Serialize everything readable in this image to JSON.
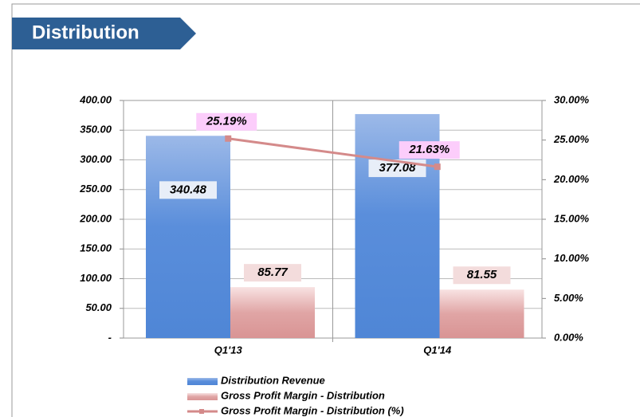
{
  "chart_data": {
    "type": "bar",
    "title": "Distribution",
    "categories": [
      "Q1'13",
      "Q1'14"
    ],
    "series": [
      {
        "name": "Distribution Revenue",
        "color": "#4f86d6",
        "values": [
          340.48,
          377.08
        ]
      },
      {
        "name": "Gross Profit Margin - Distribution",
        "color": "#d99494",
        "values": [
          85.77,
          81.55
        ]
      },
      {
        "name": "Gross Profit Margin - Distribution (%)",
        "color": "#d48a8a",
        "type": "line",
        "axis": "y2",
        "values": [
          25.19,
          21.63
        ],
        "value_labels": [
          "25.19%",
          "21.63%"
        ]
      }
    ],
    "ylim": [
      0,
      400
    ],
    "yticks": [
      {
        "value": 0,
        "label": "-"
      },
      {
        "value": 50,
        "label": "50.00"
      },
      {
        "value": 100,
        "label": "100.00"
      },
      {
        "value": 150,
        "label": "150.00"
      },
      {
        "value": 200,
        "label": "200.00"
      },
      {
        "value": 250,
        "label": "250.00"
      },
      {
        "value": 300,
        "label": "300.00"
      },
      {
        "value": 350,
        "label": "350.00"
      },
      {
        "value": 400,
        "label": "400.00"
      }
    ],
    "y2lim": [
      0,
      30
    ],
    "y2ticks": [
      {
        "value": 0,
        "label": "0.00%"
      },
      {
        "value": 5,
        "label": "5.00%"
      },
      {
        "value": 10,
        "label": "10.00%"
      },
      {
        "value": 15,
        "label": "15.00%"
      },
      {
        "value": 20,
        "label": "20.00%"
      },
      {
        "value": 25,
        "label": "25.00%"
      },
      {
        "value": 30,
        "label": "30.00%"
      }
    ],
    "grid": true,
    "legend": "bottom"
  }
}
